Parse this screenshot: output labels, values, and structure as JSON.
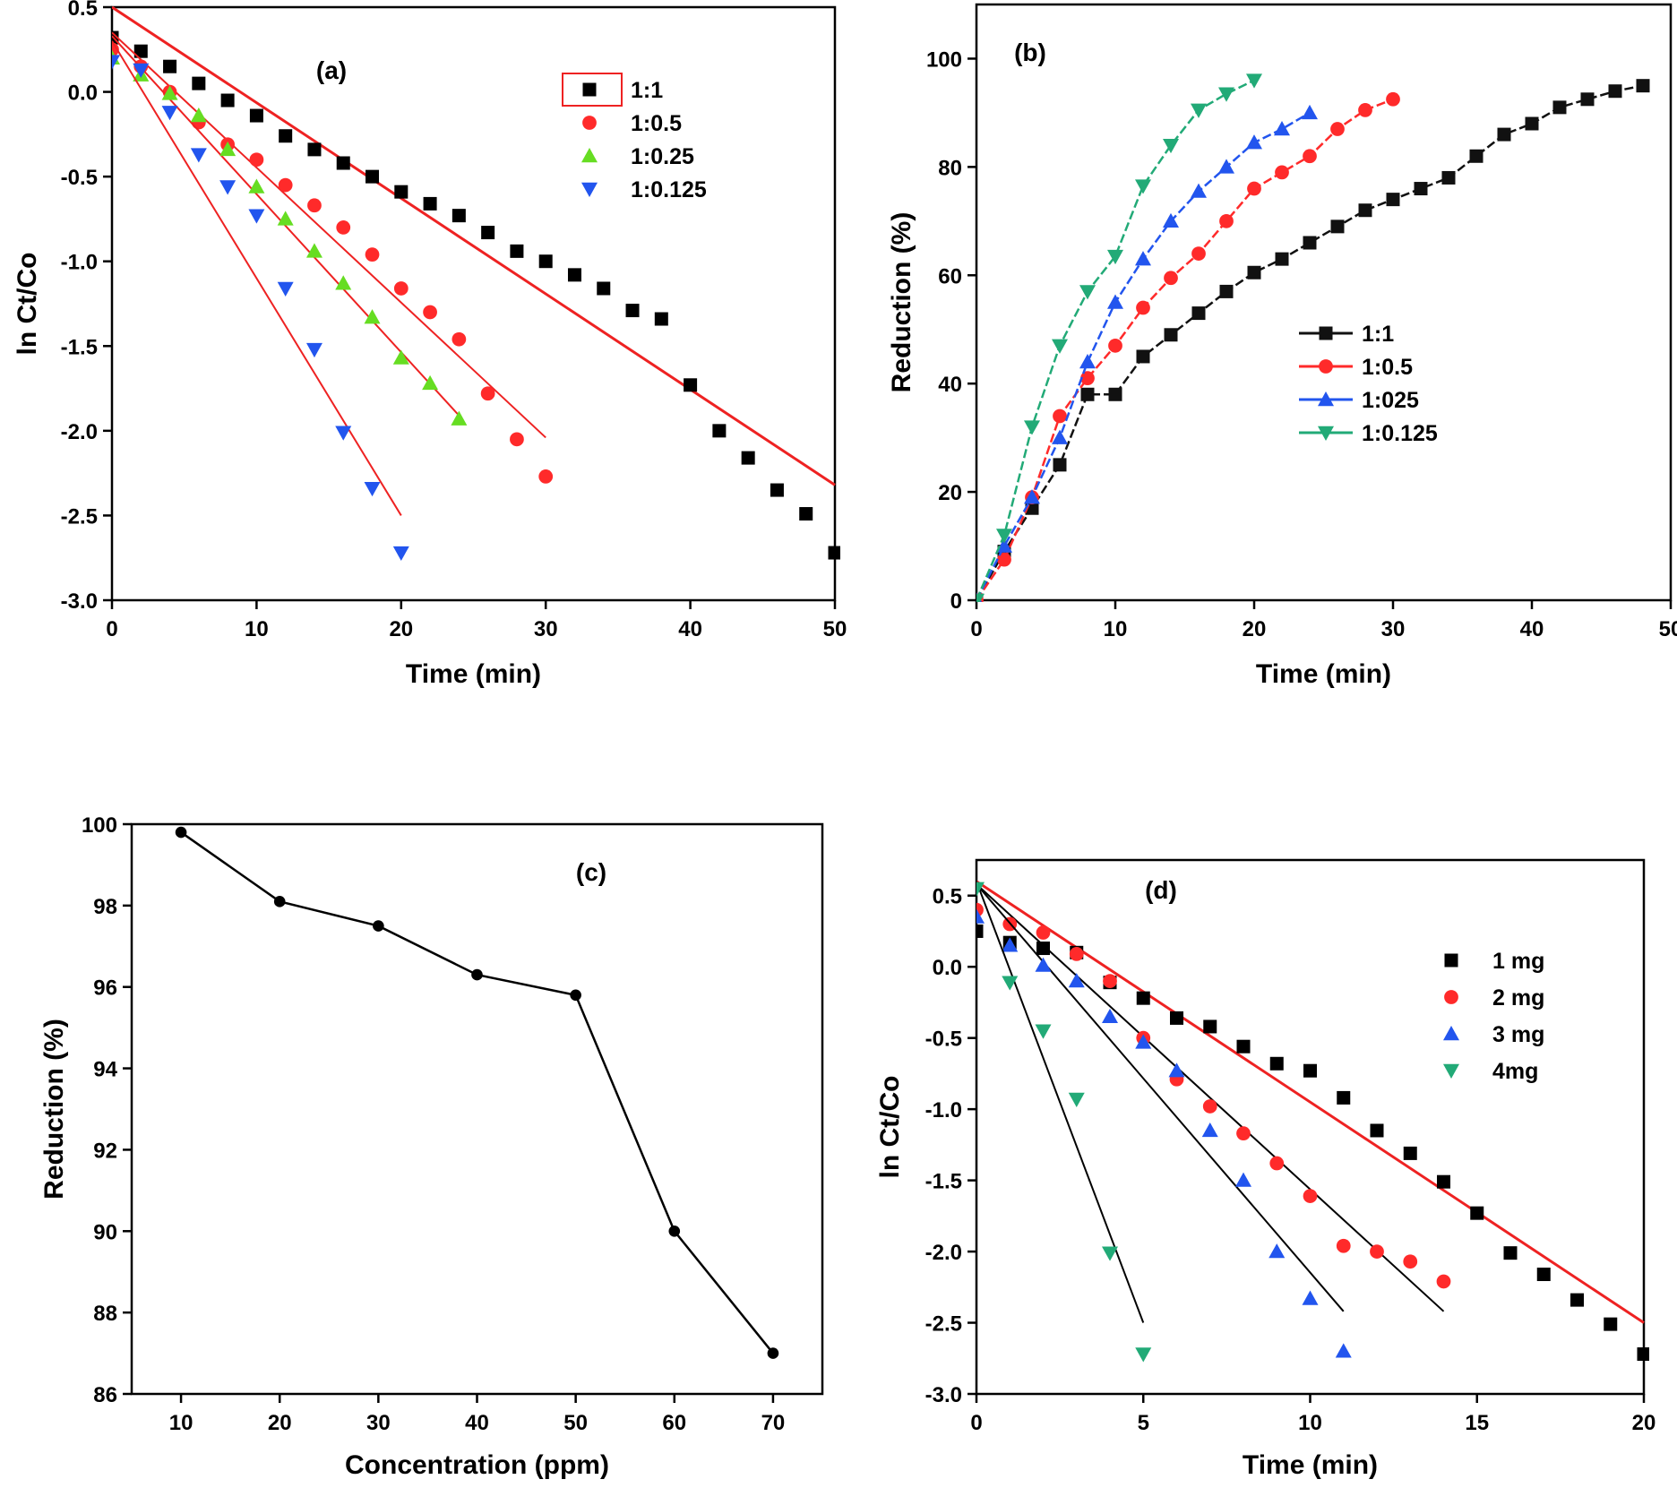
{
  "chart_data": [
    {
      "id": "a",
      "type": "scatter",
      "panel_label": "(a)",
      "xlabel": "Time (min)",
      "ylabel": "ln Ct/Co",
      "xlim": [
        0,
        50
      ],
      "ylim": [
        -3.0,
        0.5
      ],
      "xticks": [
        0,
        10,
        20,
        30,
        40,
        50
      ],
      "yticks": [
        0.5,
        0.0,
        -0.5,
        -1.0,
        -1.5,
        -2.0,
        -2.5,
        -3.0
      ],
      "ytick_labels": [
        "0.5",
        "0.0",
        "-0.5",
        "-1.0",
        "-1.5",
        "-2.0",
        "-2.5",
        "-3.0"
      ],
      "legend_position": "top-right",
      "series": [
        {
          "name": "1:1",
          "marker": "square",
          "color": "#000000",
          "x": [
            0,
            2,
            4,
            6,
            8,
            10,
            12,
            14,
            16,
            18,
            20,
            22,
            24,
            26,
            28,
            30,
            32,
            34,
            36,
            38,
            40,
            42,
            44,
            46,
            48,
            50
          ],
          "y": [
            0.32,
            0.24,
            0.15,
            0.05,
            -0.05,
            -0.14,
            -0.26,
            -0.34,
            -0.42,
            -0.5,
            -0.59,
            -0.66,
            -0.73,
            -0.83,
            -0.94,
            -1.0,
            -1.08,
            -1.16,
            -1.29,
            -1.34,
            -1.73,
            -2.0,
            -2.16,
            -2.35,
            -2.49,
            -2.72
          ],
          "fit": [
            [
              0,
              0.5
            ],
            [
              50,
              -2.32
            ]
          ],
          "fit_color": "#ee2222"
        },
        {
          "name": "1:0.5",
          "marker": "circle",
          "color": "#ff2a2a",
          "x": [
            0,
            2,
            4,
            6,
            8,
            10,
            12,
            14,
            16,
            18,
            20,
            22,
            24,
            26,
            28,
            30
          ],
          "y": [
            0.25,
            0.15,
            0.0,
            -0.18,
            -0.31,
            -0.4,
            -0.55,
            -0.67,
            -0.8,
            -0.96,
            -1.16,
            -1.3,
            -1.46,
            -1.78,
            -2.05,
            -2.27
          ],
          "fit": [
            [
              0,
              0.35
            ],
            [
              30,
              -2.04
            ]
          ],
          "fit_color": "#ee2222"
        },
        {
          "name": "1:0.25",
          "marker": "triangle-up",
          "color": "#66dd22",
          "x": [
            0,
            2,
            4,
            6,
            8,
            10,
            12,
            14,
            16,
            18,
            20,
            22,
            24
          ],
          "y": [
            0.2,
            0.1,
            -0.01,
            -0.14,
            -0.34,
            -0.56,
            -0.75,
            -0.94,
            -1.13,
            -1.33,
            -1.57,
            -1.72,
            -1.93
          ],
          "fit": [
            [
              0,
              0.33
            ],
            [
              24,
              -1.91
            ]
          ],
          "fit_color": "#ee2222"
        },
        {
          "name": "1:0.125",
          "marker": "triangle-down",
          "color": "#2255ee",
          "x": [
            0,
            2,
            4,
            6,
            8,
            10,
            12,
            14,
            16,
            18,
            20
          ],
          "y": [
            0.18,
            0.13,
            -0.12,
            -0.37,
            -0.56,
            -0.73,
            -1.16,
            -1.52,
            -2.01,
            -2.34,
            -2.72
          ],
          "fit": [
            [
              0,
              0.3
            ],
            [
              20,
              -2.5
            ]
          ],
          "fit_color": "#ee2222"
        }
      ]
    },
    {
      "id": "b",
      "type": "line",
      "panel_label": "(b)",
      "xlabel": "Time (min)",
      "ylabel": "Reduction (%)",
      "xlim": [
        0,
        50
      ],
      "ylim": [
        0,
        110
      ],
      "xticks": [
        0,
        10,
        20,
        30,
        40,
        50
      ],
      "yticks": [
        0,
        20,
        40,
        60,
        80,
        100
      ],
      "ytick_labels": [
        "0",
        "20",
        "40",
        "60",
        "80",
        "100"
      ],
      "legend_position": "center-right",
      "series": [
        {
          "name": "1:1",
          "marker": "square",
          "color": "#111111",
          "x": [
            0,
            2,
            4,
            6,
            8,
            10,
            12,
            14,
            16,
            18,
            20,
            22,
            24,
            26,
            28,
            30,
            32,
            34,
            36,
            38,
            40,
            42,
            44,
            46,
            48
          ],
          "y": [
            0,
            9,
            17,
            25,
            38,
            38,
            45,
            49,
            53,
            57,
            60.5,
            63,
            66,
            69,
            72,
            74,
            76,
            78,
            82,
            86,
            88,
            91,
            92.5,
            94,
            95
          ]
        },
        {
          "name": "1:0.5",
          "marker": "circle",
          "color": "#ff2a2a",
          "x": [
            0,
            2,
            4,
            6,
            8,
            10,
            12,
            14,
            16,
            18,
            20,
            22,
            24,
            26,
            28,
            30
          ],
          "y": [
            0,
            7.5,
            19,
            34,
            41,
            47,
            54,
            59.5,
            64,
            70,
            76,
            79,
            82,
            87,
            90.5,
            92.5
          ]
        },
        {
          "name": "1:025",
          "marker": "triangle-up",
          "color": "#2255ee",
          "x": [
            0,
            2,
            4,
            6,
            8,
            10,
            12,
            14,
            16,
            18,
            20,
            22,
            24
          ],
          "y": [
            0,
            10,
            19,
            30,
            44,
            55,
            63,
            70,
            75.5,
            80,
            84.5,
            87,
            90
          ]
        },
        {
          "name": "1:0.125",
          "marker": "triangle-down",
          "color": "#22aa77",
          "x": [
            0,
            2,
            4,
            6,
            8,
            10,
            12,
            14,
            16,
            18,
            20
          ],
          "y": [
            0,
            12,
            32,
            47,
            57,
            63.5,
            76.5,
            84,
            90.5,
            93.5,
            96
          ]
        }
      ]
    },
    {
      "id": "c",
      "type": "line",
      "panel_label": "(c)",
      "xlabel": "Concentration (ppm)",
      "ylabel": "Reduction (%)",
      "xlim": [
        5,
        75
      ],
      "ylim": [
        86,
        100
      ],
      "xticks": [
        10,
        20,
        30,
        40,
        50,
        60,
        70
      ],
      "yticks": [
        86,
        88,
        90,
        92,
        94,
        96,
        98,
        100
      ],
      "ytick_labels": [
        "86",
        "88",
        "90",
        "92",
        "94",
        "96",
        "98",
        "100"
      ],
      "series": [
        {
          "marker": "circle",
          "color": "#000000",
          "x": [
            10,
            20,
            30,
            40,
            50,
            60,
            70
          ],
          "y": [
            99.8,
            98.1,
            97.5,
            96.3,
            95.8,
            90.0,
            87.0
          ]
        }
      ]
    },
    {
      "id": "d",
      "type": "scatter",
      "panel_label": "(d)",
      "xlabel": "Time (min)",
      "ylabel": "ln Ct/Co",
      "xlim": [
        0,
        20
      ],
      "ylim": [
        -3.0,
        0.75
      ],
      "xticks": [
        0,
        5,
        10,
        15,
        20
      ],
      "yticks": [
        0.5,
        0.0,
        -0.5,
        -1.0,
        -1.5,
        -2.0,
        -2.5,
        -3.0
      ],
      "ytick_labels": [
        "0.5",
        "0.0",
        "-0.5",
        "-1.0",
        "-1.5",
        "-2.0",
        "-2.5",
        "-3.0"
      ],
      "legend_position": "top-right",
      "series": [
        {
          "name": "1 mg",
          "marker": "square",
          "color": "#000000",
          "x": [
            0,
            1,
            2,
            3,
            4,
            5,
            6,
            7,
            8,
            9,
            10,
            11,
            12,
            13,
            14,
            15,
            16,
            17,
            18,
            19,
            20
          ],
          "y": [
            0.25,
            0.17,
            0.13,
            0.1,
            -0.11,
            -0.22,
            -0.36,
            -0.42,
            -0.56,
            -0.68,
            -0.73,
            -0.92,
            -1.15,
            -1.31,
            -1.51,
            -1.73,
            -2.01,
            -2.16,
            -2.34,
            -2.51,
            -2.72
          ],
          "fit": [
            [
              0,
              0.6
            ],
            [
              20,
              -2.5
            ]
          ],
          "fit_color": "#ee2222"
        },
        {
          "name": "2 mg",
          "marker": "circle",
          "color": "#ff2a2a",
          "x": [
            0,
            1,
            2,
            3,
            4,
            5,
            6,
            7,
            8,
            9,
            10,
            11,
            12,
            13,
            14
          ],
          "y": [
            0.4,
            0.3,
            0.24,
            0.09,
            -0.1,
            -0.5,
            -0.79,
            -0.98,
            -1.17,
            -1.38,
            -1.61,
            -1.96,
            -2.0,
            -2.07,
            -2.21
          ],
          "fit": [
            [
              0,
              0.58
            ],
            [
              14,
              -2.42
            ]
          ],
          "fit_color": "#000000"
        },
        {
          "name": "3 mg",
          "marker": "triangle-up",
          "color": "#2255ee",
          "x": [
            0,
            1,
            2,
            3,
            4,
            5,
            6,
            7,
            8,
            9,
            10,
            11
          ],
          "y": [
            0.35,
            0.15,
            0.01,
            -0.1,
            -0.35,
            -0.53,
            -0.73,
            -1.15,
            -1.5,
            -2.0,
            -2.33,
            -2.7
          ],
          "fit": [
            [
              0,
              0.58
            ],
            [
              11,
              -2.42
            ]
          ],
          "fit_color": "#000000"
        },
        {
          "name": "4mg",
          "marker": "triangle-down",
          "color": "#22aa77",
          "x": [
            0,
            1,
            2,
            3,
            4,
            5
          ],
          "y": [
            0.55,
            -0.11,
            -0.45,
            -0.93,
            -2.01,
            -2.72
          ],
          "fit": [
            [
              0,
              0.6
            ],
            [
              5,
              -2.5
            ]
          ],
          "fit_color": "#000000"
        }
      ]
    }
  ]
}
